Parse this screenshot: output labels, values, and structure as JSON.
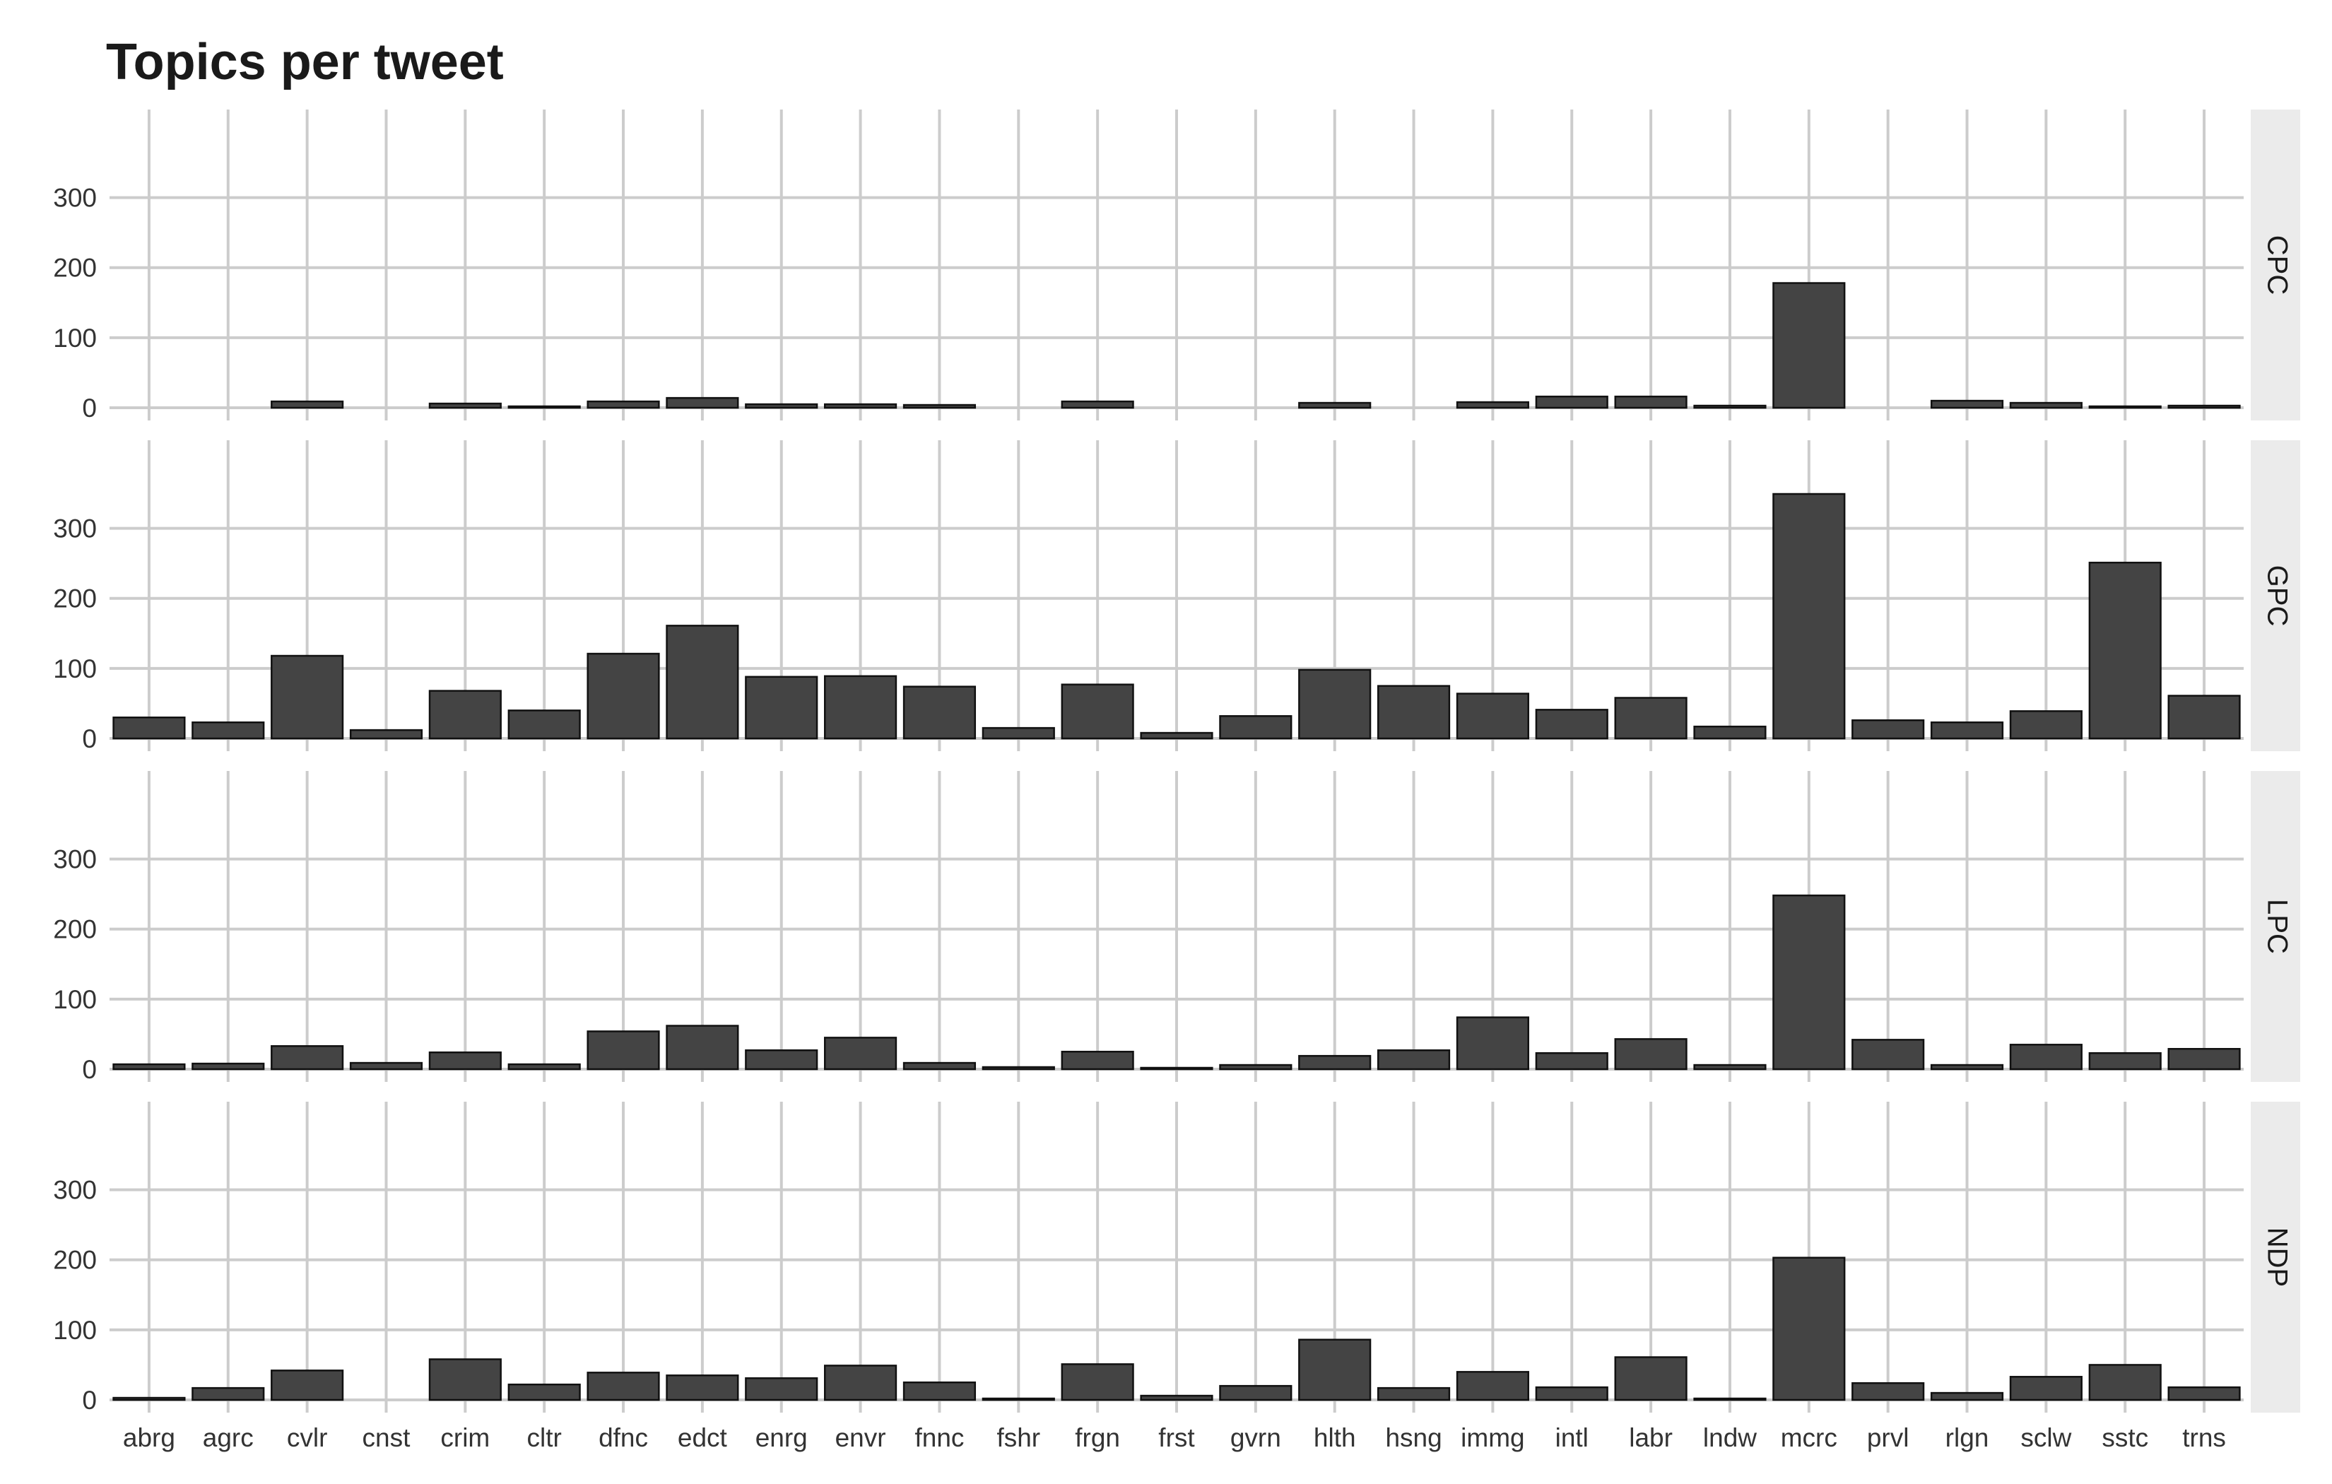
{
  "chart_data": {
    "type": "bar",
    "title": "Topics per tweet",
    "xlabel": "",
    "ylabel": "",
    "ylim": [
      0,
      350
    ],
    "yticks": [
      0,
      100,
      200,
      300
    ],
    "grid": true,
    "facets": "rows",
    "categories": [
      "abrg",
      "agrc",
      "cvlr",
      "cnst",
      "crim",
      "cltr",
      "dfnc",
      "edct",
      "enrg",
      "envr",
      "fnnc",
      "fshr",
      "frgn",
      "frst",
      "gvrn",
      "hlth",
      "hsng",
      "immg",
      "intl",
      "labr",
      "lndw",
      "mcrc",
      "prvl",
      "rlgn",
      "sclw",
      "sstc",
      "trns"
    ],
    "series": [
      {
        "name": "CPC",
        "values": [
          0,
          0,
          9,
          0,
          6,
          2,
          9,
          14,
          5,
          5,
          4,
          0,
          9,
          0,
          0,
          7,
          0,
          8,
          16,
          16,
          3,
          178,
          0,
          10,
          7,
          2,
          3
        ]
      },
      {
        "name": "GPC",
        "values": [
          30,
          23,
          118,
          12,
          68,
          40,
          121,
          161,
          88,
          89,
          74,
          15,
          77,
          8,
          32,
          98,
          75,
          64,
          41,
          58,
          17,
          349,
          26,
          23,
          39,
          251,
          61
        ]
      },
      {
        "name": "LPC",
        "values": [
          7,
          8,
          33,
          9,
          24,
          7,
          54,
          62,
          27,
          45,
          9,
          3,
          25,
          2,
          6,
          19,
          27,
          74,
          23,
          43,
          6,
          248,
          42,
          6,
          35,
          23,
          29
        ]
      },
      {
        "name": "NDP",
        "values": [
          3,
          17,
          42,
          0,
          58,
          22,
          39,
          35,
          31,
          49,
          25,
          2,
          51,
          6,
          20,
          86,
          17,
          40,
          18,
          61,
          2,
          203,
          24,
          10,
          33,
          50,
          18
        ]
      }
    ]
  }
}
